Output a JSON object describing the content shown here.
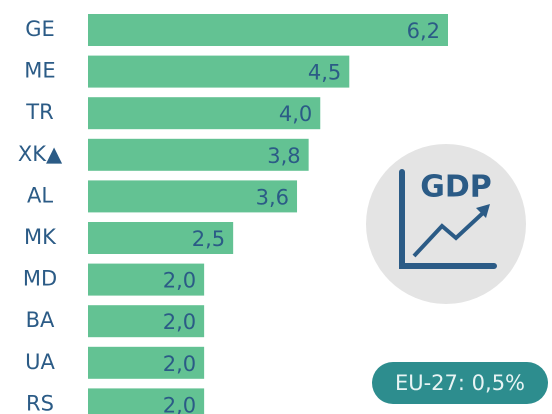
{
  "chart_data": {
    "type": "barh",
    "categories": [
      "GE",
      "ME",
      "TR",
      "XK▲",
      "AL",
      "MK",
      "MD",
      "BA",
      "UA",
      "RS"
    ],
    "values": [
      6.2,
      4.5,
      4.0,
      3.8,
      3.6,
      2.5,
      2.0,
      2.0,
      2.0,
      2.0
    ],
    "value_labels": [
      "6,2",
      "4,5",
      "4,0",
      "3,8",
      "3,6",
      "2,5",
      "2,0",
      "2,0",
      "2,0",
      "2,0"
    ],
    "color": "#63c293",
    "icon_text": "GDP",
    "annotation": "EU-27: 0,5%"
  }
}
